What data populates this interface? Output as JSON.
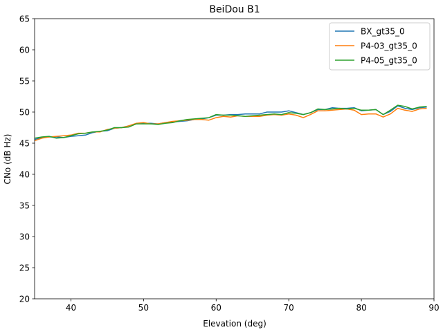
{
  "chart_data": {
    "type": "line",
    "title": "BeiDou B1",
    "xlabel": "Elevation (deg)",
    "ylabel": "CNo (dB Hz)",
    "xlim": [
      35,
      90
    ],
    "ylim": [
      20,
      65
    ],
    "xticks": [
      40,
      50,
      60,
      70,
      80,
      90
    ],
    "yticks": [
      20,
      25,
      30,
      35,
      40,
      45,
      50,
      55,
      60,
      65
    ],
    "grid": false,
    "legend_position": "top-right",
    "x": [
      35,
      36,
      37,
      38,
      39,
      40,
      41,
      42,
      43,
      44,
      45,
      46,
      47,
      48,
      49,
      50,
      51,
      52,
      53,
      54,
      55,
      56,
      57,
      58,
      59,
      60,
      61,
      62,
      63,
      64,
      65,
      66,
      67,
      68,
      69,
      70,
      71,
      72,
      73,
      74,
      75,
      76,
      77,
      78,
      79,
      80,
      81,
      82,
      83,
      84,
      85,
      86,
      87,
      88,
      89
    ],
    "series": [
      {
        "name": "BX_gt35_0",
        "color": "#1f77b4",
        "values": [
          45.6,
          45.9,
          46.0,
          46.0,
          45.9,
          46.1,
          46.2,
          46.3,
          46.7,
          46.9,
          47.0,
          47.4,
          47.5,
          47.8,
          48.1,
          48.2,
          48.2,
          48.1,
          48.3,
          48.4,
          48.5,
          48.6,
          48.8,
          48.9,
          49.1,
          49.5,
          49.5,
          49.6,
          49.6,
          49.7,
          49.7,
          49.7,
          50.0,
          50.0,
          50.0,
          50.2,
          49.9,
          49.6,
          49.9,
          50.4,
          50.4,
          50.7,
          50.6,
          50.6,
          50.7,
          50.2,
          50.3,
          50.4,
          49.6,
          50.1,
          51.0,
          50.6,
          50.4,
          50.7,
          50.8
        ]
      },
      {
        "name": "P4-03_gt35_0",
        "color": "#ff7f0e",
        "values": [
          45.4,
          45.8,
          46.0,
          46.1,
          46.2,
          46.3,
          46.6,
          46.6,
          46.8,
          46.8,
          47.2,
          47.4,
          47.5,
          47.8,
          48.2,
          48.3,
          48.1,
          48.1,
          48.3,
          48.5,
          48.6,
          48.7,
          48.8,
          48.8,
          48.7,
          49.1,
          49.3,
          49.2,
          49.4,
          49.3,
          49.3,
          49.3,
          49.5,
          49.6,
          49.5,
          49.7,
          49.5,
          49.1,
          49.6,
          50.2,
          50.2,
          50.3,
          50.4,
          50.5,
          50.3,
          49.6,
          49.7,
          49.7,
          49.2,
          49.7,
          50.6,
          50.3,
          50.1,
          50.5,
          50.6
        ]
      },
      {
        "name": "P4-05_gt35_0",
        "color": "#2ca02c",
        "values": [
          45.8,
          46.0,
          46.1,
          45.8,
          45.9,
          46.2,
          46.5,
          46.6,
          46.8,
          46.9,
          47.1,
          47.5,
          47.5,
          47.6,
          48.1,
          48.1,
          48.1,
          48.0,
          48.2,
          48.3,
          48.6,
          48.8,
          48.9,
          49.0,
          49.1,
          49.6,
          49.5,
          49.5,
          49.4,
          49.3,
          49.4,
          49.5,
          49.6,
          49.7,
          49.6,
          49.9,
          49.8,
          49.6,
          49.9,
          50.5,
          50.4,
          50.5,
          50.6,
          50.5,
          50.6,
          50.3,
          50.3,
          50.4,
          49.6,
          50.3,
          51.1,
          50.9,
          50.5,
          50.8,
          50.9
        ]
      }
    ]
  }
}
